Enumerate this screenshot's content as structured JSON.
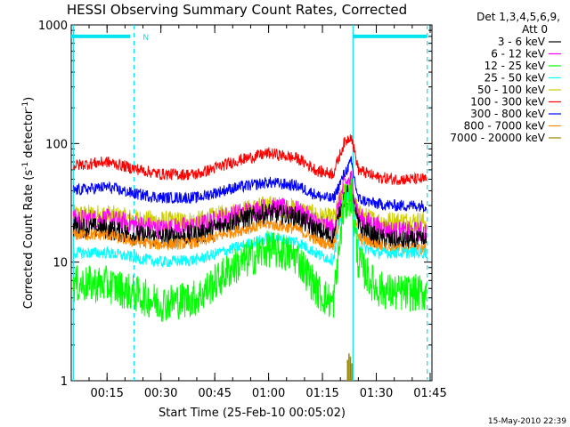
{
  "chart_data": {
    "type": "line",
    "title": "HESSI Observing Summary Count Rates, Corrected",
    "xlabel": "Start Time (25-Feb-10 00:05:02)",
    "ylabel_main": "Corrected Count Rate (s",
    "ylabel_sup1": "-1",
    "ylabel_mid": " detector",
    "ylabel_sup2": "-1",
    "ylabel_end": ")",
    "y_scale": "log",
    "ylim": [
      1,
      1000
    ],
    "xlim_minutes": [
      5.03,
      105.5
    ],
    "x_ticks": [
      {
        "label": "00:15",
        "minute": 15
      },
      {
        "label": "00:30",
        "minute": 30
      },
      {
        "label": "00:45",
        "minute": 45
      },
      {
        "label": "01:00",
        "minute": 60
      },
      {
        "label": "01:15",
        "minute": 75
      },
      {
        "label": "01:30",
        "minute": 90
      },
      {
        "label": "01:45",
        "minute": 105
      }
    ],
    "y_ticks": [
      {
        "label": "1",
        "value": 1
      },
      {
        "label": "10",
        "value": 10
      },
      {
        "label": "100",
        "value": 100
      },
      {
        "label": "1000",
        "value": 1000
      }
    ],
    "legend": {
      "header_line1": "Det 1,3,4,5,6,9,",
      "header_line2": "Att 0",
      "placement": "right-outside"
    },
    "series": [
      {
        "name": "3 - 6 keV",
        "color": "#000000",
        "x": [
          5,
          15,
          22,
          30,
          40,
          50,
          60,
          68,
          74,
          78,
          81,
          83,
          85,
          90,
          95,
          100,
          104
        ],
        "y": [
          20,
          19,
          17,
          16,
          17,
          22,
          26,
          24,
          18,
          16,
          35,
          38,
          20,
          16,
          15,
          15,
          15
        ]
      },
      {
        "name": "6 - 12 keV",
        "color": "#ff00ff",
        "x": [
          5,
          15,
          22,
          30,
          40,
          50,
          60,
          68,
          74,
          78,
          81,
          83,
          85,
          90,
          95,
          100,
          104
        ],
        "y": [
          23,
          23,
          21,
          19,
          20,
          25,
          29,
          27,
          21,
          19,
          45,
          50,
          24,
          20,
          18,
          18,
          18
        ]
      },
      {
        "name": "12 - 25 keV",
        "color": "#00ff00",
        "x": [
          5,
          15,
          22,
          30,
          40,
          50,
          60,
          68,
          74,
          78,
          81,
          83,
          85,
          90,
          95,
          100,
          104
        ],
        "y": [
          6.5,
          6.5,
          5.5,
          4.5,
          5,
          9,
          13,
          11,
          5.5,
          4.5,
          30,
          36,
          10,
          6,
          5.5,
          5.5,
          5.5
        ]
      },
      {
        "name": "25 - 50 keV",
        "color": "#00ffff",
        "x": [
          5,
          15,
          22,
          30,
          40,
          50,
          60,
          68,
          74,
          78,
          81,
          83,
          85,
          90,
          95,
          100,
          104
        ],
        "y": [
          12,
          12,
          11,
          10,
          10.5,
          13,
          16,
          15,
          11.5,
          10.5,
          33,
          38,
          14,
          12,
          12,
          12,
          12
        ]
      },
      {
        "name": "50 - 100 keV",
        "color": "#cccc00",
        "x": [
          5,
          15,
          22,
          30,
          40,
          50,
          60,
          68,
          74,
          78,
          81,
          83,
          85,
          90,
          95,
          100,
          104
        ],
        "y": [
          25,
          25,
          23,
          22,
          22,
          26,
          30,
          28,
          24,
          23,
          40,
          45,
          25,
          22,
          22,
          22,
          22
        ]
      },
      {
        "name": "100 - 300 keV",
        "color": "#ff0000",
        "x": [
          5,
          15,
          22,
          30,
          40,
          50,
          60,
          68,
          74,
          78,
          81,
          83,
          85,
          90,
          95,
          100,
          104
        ],
        "y": [
          65,
          70,
          62,
          55,
          55,
          70,
          83,
          75,
          58,
          56,
          100,
          118,
          60,
          52,
          50,
          50,
          50
        ]
      },
      {
        "name": "300 - 800 keV",
        "color": "#0000ff",
        "x": [
          5,
          15,
          22,
          30,
          40,
          50,
          60,
          68,
          74,
          78,
          81,
          83,
          85,
          90,
          95,
          100,
          104
        ],
        "y": [
          40,
          43,
          38,
          35,
          35,
          42,
          47,
          44,
          36,
          34,
          55,
          70,
          34,
          31,
          30,
          30,
          30
        ]
      },
      {
        "name": "800 - 7000 keV",
        "color": "#ff8c00",
        "x": [
          5,
          15,
          22,
          30,
          40,
          50,
          60,
          68,
          74,
          78,
          81,
          83,
          85,
          90,
          95,
          100,
          104
        ],
        "y": [
          17,
          17,
          15,
          14,
          14.5,
          18,
          21,
          19,
          15,
          14,
          32,
          36,
          16,
          14,
          13,
          13,
          13
        ]
      },
      {
        "name": "7000 - 20000 keV",
        "color": "#998800",
        "x": [
          82,
          82.4,
          82.8,
          83.2
        ],
        "y": [
          1.5,
          1.7,
          1.6,
          1.4
        ]
      }
    ],
    "observing_bars": [
      {
        "from": 5,
        "to": 21.5,
        "value": 800
      },
      {
        "from": 83.5,
        "to": 104,
        "value": 800
      }
    ],
    "bar_label": "N",
    "vertical_lines_solid": [
      5.6,
      83.5
    ],
    "vertical_lines_dashed": [
      22.5,
      104.2
    ],
    "timestamp": "15-May-2010 22:39"
  }
}
